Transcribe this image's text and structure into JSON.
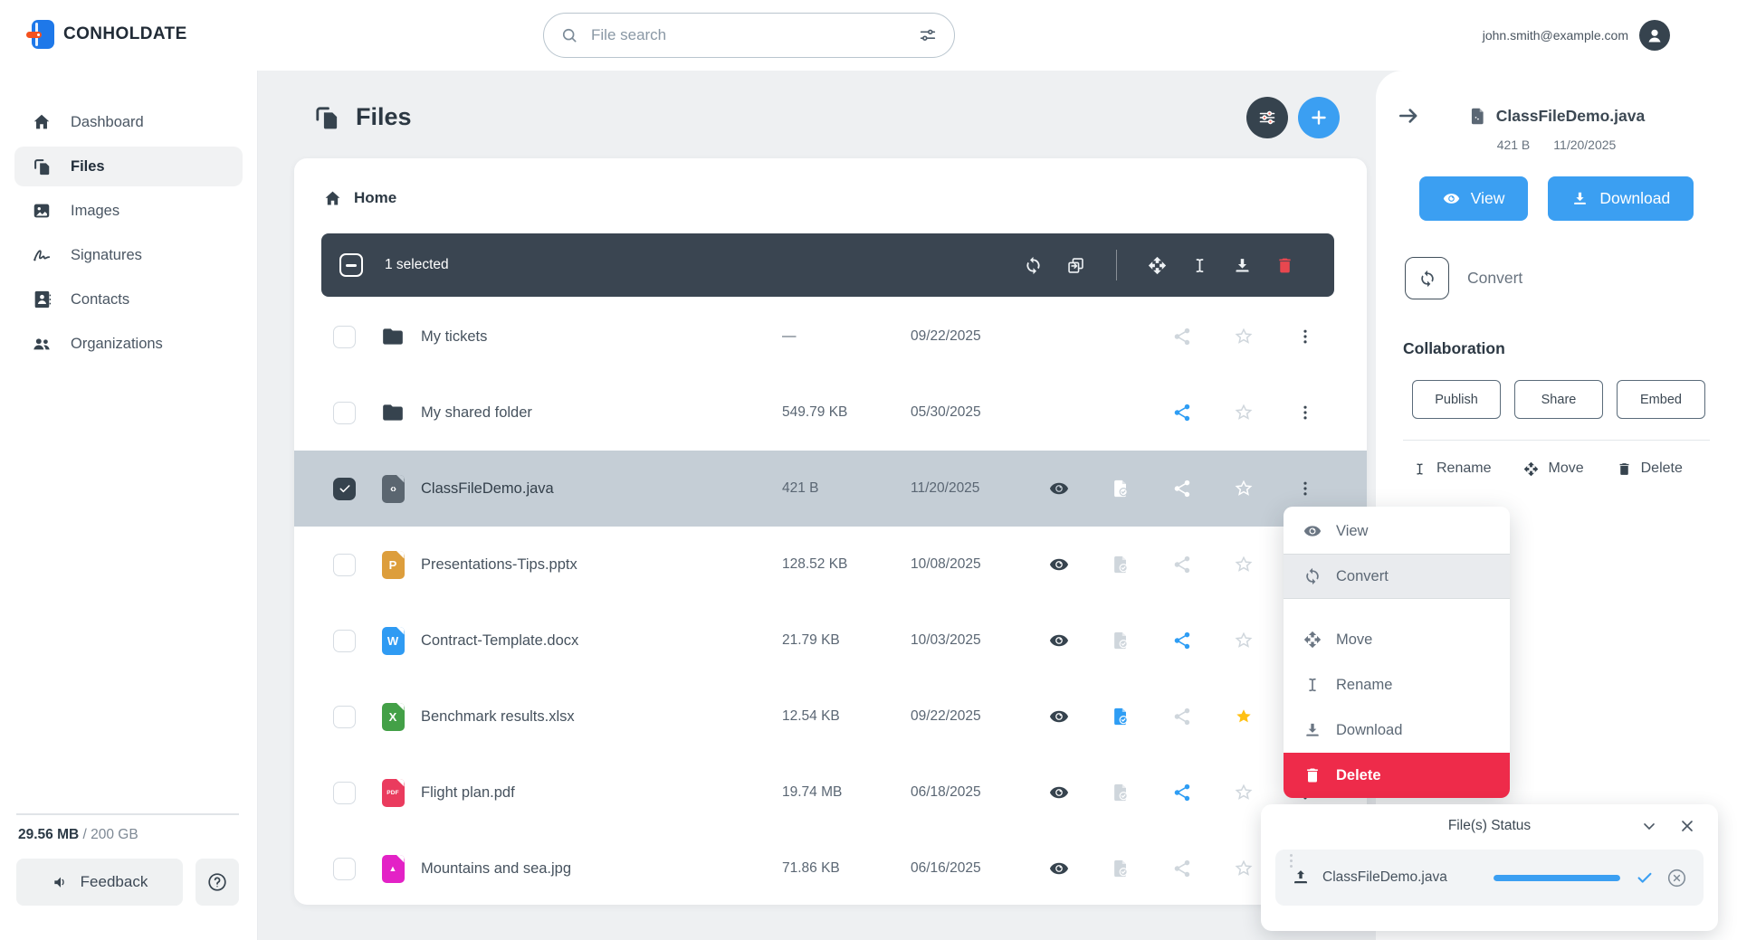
{
  "brand": {
    "name": "CONHOLDATE"
  },
  "topbar": {
    "search_placeholder": "File search",
    "user_email": "john.smith@example.com"
  },
  "sidebar": {
    "items": [
      {
        "label": "Dashboard",
        "icon": "home",
        "active": false
      },
      {
        "label": "Files",
        "icon": "files",
        "active": true
      },
      {
        "label": "Images",
        "icon": "image",
        "active": false
      },
      {
        "label": "Signatures",
        "icon": "signature",
        "active": false
      },
      {
        "label": "Contacts",
        "icon": "contacts",
        "active": false
      },
      {
        "label": "Organizations",
        "icon": "people",
        "active": false
      }
    ],
    "storage_used": "29.56 MB",
    "storage_separator": "/",
    "storage_total": "200 GB",
    "feedback_label": "Feedback"
  },
  "main": {
    "title": "Files",
    "breadcrumb_home": "Home",
    "selection_count_label": "1 selected",
    "toolbar_icons": [
      "sync",
      "merge",
      "divider",
      "move",
      "rename",
      "download",
      "trash"
    ]
  },
  "files": [
    {
      "name": "My tickets",
      "size": "—",
      "date": "09/22/2025",
      "selected": false,
      "icon": {
        "kind": "folder"
      },
      "actions": {
        "share": "muted",
        "star": "muted"
      }
    },
    {
      "name": "My shared folder",
      "size": "549.79 KB",
      "date": "05/30/2025",
      "selected": false,
      "icon": {
        "kind": "folder"
      },
      "actions": {
        "share": "blue",
        "star": "muted"
      }
    },
    {
      "name": "ClassFileDemo.java",
      "size": "421 B",
      "date": "11/20/2025",
      "selected": true,
      "icon": {
        "kind": "doc",
        "label": "‹›",
        "color": "#5b6670",
        "variant": "code"
      },
      "actions": {
        "eye": "dark",
        "file": "white",
        "share": "white",
        "star": "white"
      }
    },
    {
      "name": "Presentations-Tips.pptx",
      "size": "128.52 KB",
      "date": "10/08/2025",
      "selected": false,
      "icon": {
        "kind": "doc",
        "label": "P",
        "color": "#dd9e3c"
      },
      "actions": {
        "eye": "dark",
        "file": "muted",
        "share": "muted",
        "star": "muted"
      }
    },
    {
      "name": "Contract-Template.docx",
      "size": "21.79 KB",
      "date": "10/03/2025",
      "selected": false,
      "icon": {
        "kind": "doc",
        "label": "W",
        "color": "#2f9bf3"
      },
      "actions": {
        "eye": "dark",
        "file": "muted",
        "share": "blue",
        "star": "muted"
      }
    },
    {
      "name": "Benchmark results.xlsx",
      "size": "12.54 KB",
      "date": "09/22/2025",
      "selected": false,
      "icon": {
        "kind": "doc",
        "label": "X",
        "color": "#43a047"
      },
      "actions": {
        "eye": "dark",
        "file": "blue",
        "share": "muted",
        "star": "yellow"
      }
    },
    {
      "name": "Flight plan.pdf",
      "size": "19.74 MB",
      "date": "06/18/2025",
      "selected": false,
      "icon": {
        "kind": "doc",
        "label": "PDF",
        "color": "#ea3b5e",
        "variant": "small"
      },
      "actions": {
        "eye": "dark",
        "file": "muted",
        "share": "blue",
        "star": "muted"
      }
    },
    {
      "name": "Mountains and sea.jpg",
      "size": "71.86 KB",
      "date": "06/16/2025",
      "selected": false,
      "icon": {
        "kind": "doc",
        "label": "▲",
        "color": "#e322c6",
        "variant": "img"
      },
      "actions": {
        "eye": "dark",
        "file": "muted",
        "share": "muted",
        "star": "muted"
      }
    }
  ],
  "context_menu": {
    "items": [
      {
        "label": "View",
        "icon": "eye",
        "highlighted": false,
        "danger": false,
        "spaced": false
      },
      {
        "label": "Convert",
        "icon": "sync",
        "highlighted": true,
        "danger": false,
        "spaced": false
      },
      {
        "label": "Move",
        "icon": "move",
        "highlighted": false,
        "danger": false,
        "spaced": true
      },
      {
        "label": "Rename",
        "icon": "rename",
        "highlighted": false,
        "danger": false,
        "spaced": false
      },
      {
        "label": "Download",
        "icon": "download",
        "highlighted": false,
        "danger": false,
        "spaced": false
      },
      {
        "label": "Delete",
        "icon": "trash",
        "highlighted": false,
        "danger": true,
        "spaced": false
      }
    ]
  },
  "details_panel": {
    "file_name": "ClassFileDemo.java",
    "file_size": "421 B",
    "file_date": "11/20/2025",
    "view_label": "View",
    "download_label": "Download",
    "convert_label": "Convert",
    "collaboration_title": "Collaboration",
    "collab_buttons": [
      "Publish",
      "Share",
      "Embed"
    ],
    "quick_actions": [
      {
        "label": "Rename",
        "icon": "rename"
      },
      {
        "label": "Move",
        "icon": "move"
      },
      {
        "label": "Delete",
        "icon": "trash"
      }
    ]
  },
  "status_panel": {
    "title": "File(s) Status",
    "items": [
      {
        "name": "ClassFileDemo.java",
        "progress": 100
      }
    ]
  },
  "colors": {
    "accent": "#3b9ff2",
    "danger": "#ee2b4a",
    "star_yellow": "#ffc012",
    "share_blue": "#2e9df4",
    "dark_slate": "#36434e",
    "selected_row_bg": "#c5ced6"
  }
}
